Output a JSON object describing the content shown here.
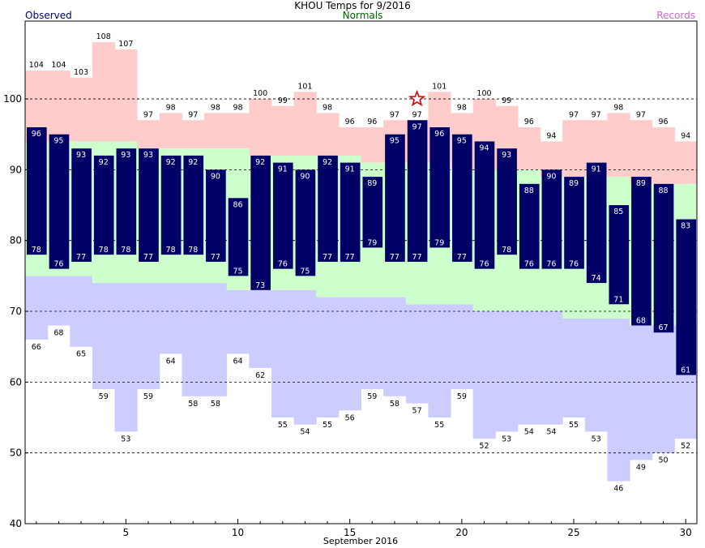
{
  "chart_data": {
    "type": "bar",
    "title": "KHOU Temps for 9/2016",
    "xlabel": "September 2016",
    "ylabel": "",
    "xlim": [
      0.5,
      30.5
    ],
    "ylim": [
      40,
      111
    ],
    "yticks": [
      40,
      50,
      60,
      70,
      80,
      90,
      100
    ],
    "xticks": [
      5,
      10,
      15,
      20,
      25,
      30
    ],
    "grid": "dashed horizontal at 50, 60, 70, 80, 90, 100",
    "days": [
      1,
      2,
      3,
      4,
      5,
      6,
      7,
      8,
      9,
      10,
      11,
      12,
      13,
      14,
      15,
      16,
      17,
      18,
      19,
      20,
      21,
      22,
      23,
      24,
      25,
      26,
      27,
      28,
      29,
      30
    ],
    "series": [
      {
        "name": "Observed",
        "color": "#000066",
        "high": [
          96,
          95,
          93,
          92,
          93,
          93,
          92,
          92,
          90,
          86,
          92,
          91,
          90,
          92,
          91,
          89,
          95,
          97,
          96,
          95,
          94,
          93,
          88,
          90,
          89,
          91,
          85,
          89,
          88,
          83
        ],
        "low": [
          78,
          76,
          77,
          78,
          78,
          77,
          78,
          78,
          77,
          75,
          73,
          76,
          75,
          77,
          77,
          79,
          77,
          77,
          79,
          77,
          76,
          78,
          76,
          76,
          76,
          74,
          71,
          68,
          67,
          61
        ]
      },
      {
        "name": "Normals",
        "color": "#ccffcc",
        "high": [
          94,
          94,
          94,
          94,
          94,
          93,
          93,
          93,
          93,
          93,
          92,
          92,
          92,
          92,
          92,
          91,
          91,
          91,
          91,
          90,
          90,
          90,
          90,
          89,
          89,
          89,
          89,
          88,
          88,
          88
        ],
        "low": [
          75,
          75,
          75,
          74,
          74,
          74,
          74,
          74,
          74,
          73,
          73,
          73,
          73,
          72,
          72,
          72,
          72,
          71,
          71,
          71,
          70,
          70,
          70,
          70,
          69,
          69,
          69,
          68,
          68,
          68
        ]
      },
      {
        "name": "Records",
        "color": "#ffcccc",
        "high": [
          104,
          104,
          103,
          108,
          107,
          97,
          98,
          97,
          98,
          98,
          100,
          99,
          101,
          98,
          96,
          96,
          97,
          97,
          101,
          98,
          100,
          99,
          96,
          94,
          97,
          97,
          98,
          97,
          96,
          94
        ],
        "low": [
          66,
          68,
          65,
          59,
          53,
          59,
          64,
          58,
          58,
          64,
          62,
          55,
          54,
          55,
          56,
          59,
          58,
          57,
          55,
          59,
          52,
          53,
          54,
          54,
          55,
          53,
          46,
          49,
          50,
          52
        ],
        "low_color": "#ccccff"
      }
    ],
    "record_marker_day": 18
  },
  "legend": {
    "observed": "Observed",
    "normals": "Normals",
    "records": "Records",
    "observed_color": "#000066",
    "normals_color": "#006600",
    "records_color": "#cc66cc"
  }
}
